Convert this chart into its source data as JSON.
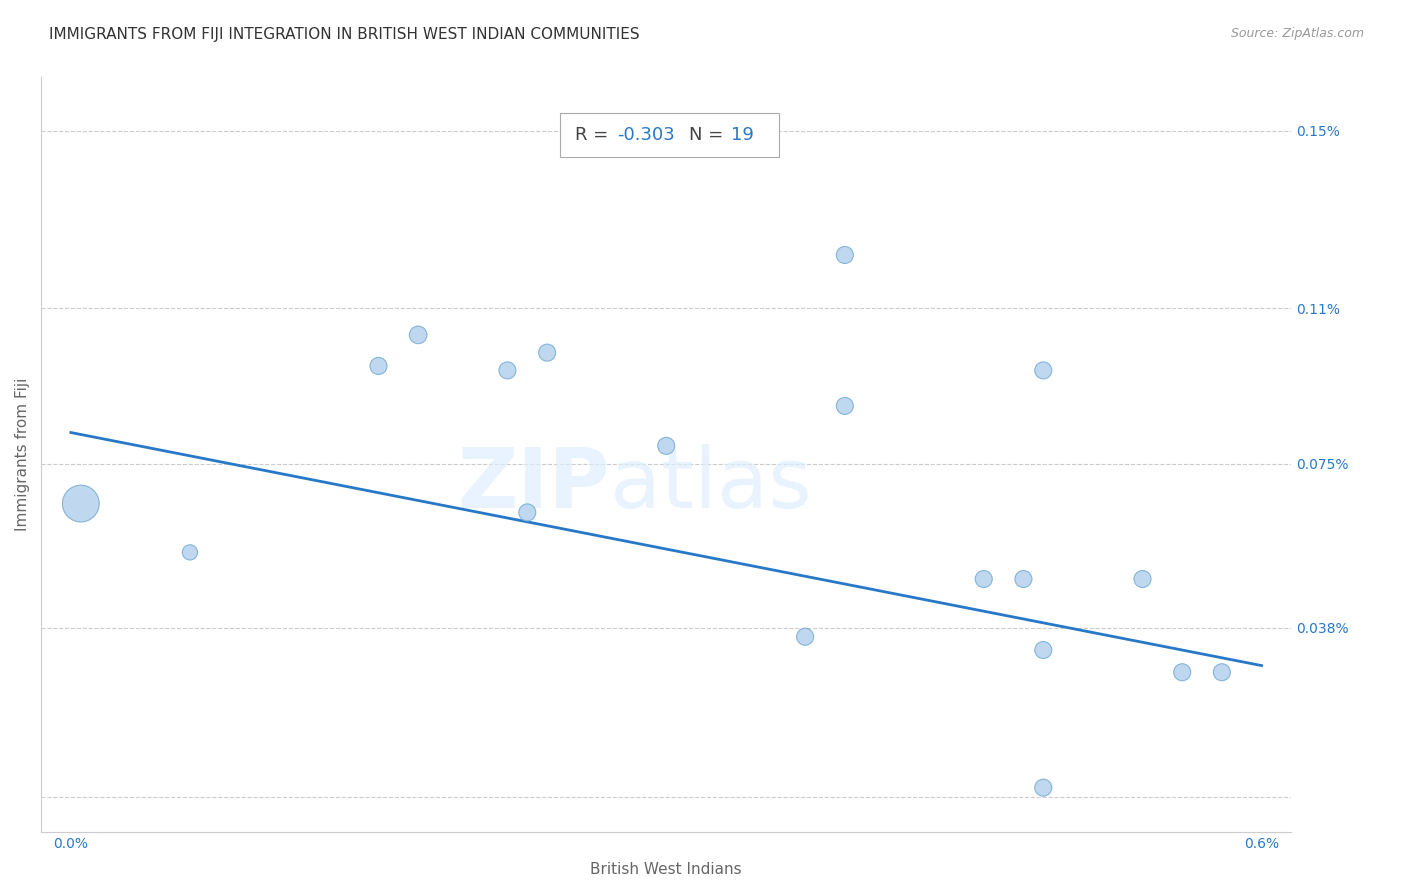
{
  "title": "IMMIGRANTS FROM FIJI INTEGRATION IN BRITISH WEST INDIAN COMMUNITIES",
  "source": "Source: ZipAtlas.com",
  "xlabel": "British West Indians",
  "ylabel": "Immigrants from Fiji",
  "R_value": -0.303,
  "N_value": 19,
  "xlim": [
    0.0,
    0.006
  ],
  "ylim": [
    0.0,
    0.0016
  ],
  "scatter_x": [
    5e-05,
    0.0006,
    0.00155,
    0.00175,
    0.0022,
    0.0024,
    0.003,
    0.0023,
    0.0039,
    0.0039,
    0.0046,
    0.0037,
    0.0048,
    0.0049,
    0.0049,
    0.0054,
    0.0056,
    0.0058,
    0.0049
  ],
  "scatter_y": [
    0.00066,
    0.00055,
    0.00097,
    0.00104,
    0.00096,
    0.001,
    0.00079,
    0.00064,
    0.00122,
    0.00088,
    0.00049,
    0.00036,
    0.00049,
    0.00033,
    0.00096,
    0.00049,
    0.00028,
    0.00028,
    2e-05
  ],
  "scatter_sizes": [
    700,
    120,
    150,
    160,
    150,
    150,
    150,
    150,
    150,
    150,
    150,
    150,
    150,
    150,
    150,
    150,
    150,
    150,
    150
  ],
  "scatter_color": "#b8d4ee",
  "scatter_edge_color": "#7aafd4",
  "regression_color": "#2878c8",
  "regression_x0": 0.0,
  "regression_x1": 0.006,
  "regression_y0": 0.00082,
  "regression_y1": 0.000295,
  "grid_color": "#cccccc",
  "title_fontsize": 11,
  "axis_label_fontsize": 11,
  "tick_fontsize": 10,
  "background_color": "#ffffff",
  "x_tick_positions": [
    0.0,
    0.001,
    0.002,
    0.003,
    0.004,
    0.005,
    0.006
  ],
  "x_tick_labels": [
    "0.0%",
    "",
    "",
    "",
    "",
    "",
    "0.6%"
  ],
  "y_tick_positions": [
    0.0,
    0.00038,
    0.00075,
    0.0011,
    0.0015
  ],
  "y_tick_labels": [
    "",
    "0.038%",
    "0.075%",
    "0.11%",
    "0.15%"
  ]
}
